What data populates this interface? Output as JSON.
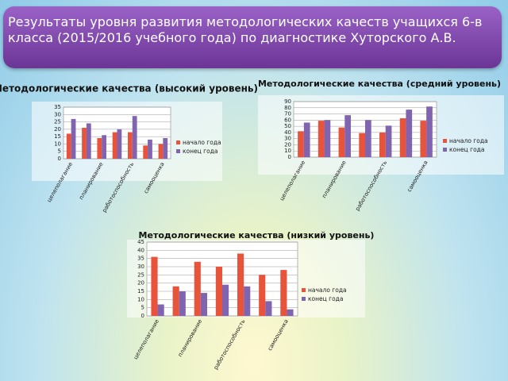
{
  "slide_title": "Результаты уровня развития  методологических качеств учащихся 6-в класса (2015/2016 учебного года) по диагностике Хуторского А.В.",
  "chart_data": [
    {
      "type": "bar",
      "title": "Методологические качества (высокий уровень)",
      "categories": [
        "целеполагание",
        null,
        "планирование",
        null,
        "работоспособность",
        null,
        "самооценка"
      ],
      "series": [
        {
          "name": "начало года",
          "color": "#e8533c",
          "values": [
            17,
            21,
            14,
            18,
            18,
            9,
            10
          ]
        },
        {
          "name": "конец года",
          "color": "#8064b0",
          "values": [
            27,
            24,
            16,
            20,
            29,
            13,
            14
          ]
        }
      ],
      "ylim": [
        0,
        35
      ],
      "yticks": [
        0,
        5,
        10,
        15,
        20,
        25,
        30,
        35
      ],
      "grid": true,
      "legend": "right"
    },
    {
      "type": "bar",
      "title": "Методологические качества (средний уровень)",
      "categories": [
        "целеполагание",
        null,
        "планирование",
        null,
        "работоспособность",
        null,
        "самооценка"
      ],
      "series": [
        {
          "name": "начало года",
          "color": "#e8533c",
          "values": [
            42,
            59,
            48,
            39,
            40,
            63,
            59
          ]
        },
        {
          "name": "конец года",
          "color": "#8064b0",
          "values": [
            56,
            60,
            68,
            60,
            51,
            77,
            82
          ]
        }
      ],
      "ylim": [
        0,
        90
      ],
      "yticks": [
        0,
        10,
        20,
        30,
        40,
        50,
        60,
        70,
        80,
        90
      ],
      "grid": true,
      "legend": "right"
    },
    {
      "type": "bar",
      "title": "Методологические качества (низкий уровень)",
      "categories": [
        "целеполагание",
        null,
        "планирование",
        null,
        "работоспособность",
        null,
        "самооценка"
      ],
      "series": [
        {
          "name": "начало года",
          "color": "#e8533c",
          "values": [
            36,
            18,
            33,
            30,
            38,
            25,
            28
          ]
        },
        {
          "name": "конец года",
          "color": "#8064b0",
          "values": [
            7,
            15,
            14,
            19,
            18,
            9,
            4
          ]
        }
      ],
      "ylim": [
        0,
        45
      ],
      "yticks": [
        0,
        5,
        10,
        15,
        20,
        25,
        30,
        35,
        40,
        45
      ],
      "grid": true,
      "legend": "right"
    }
  ]
}
